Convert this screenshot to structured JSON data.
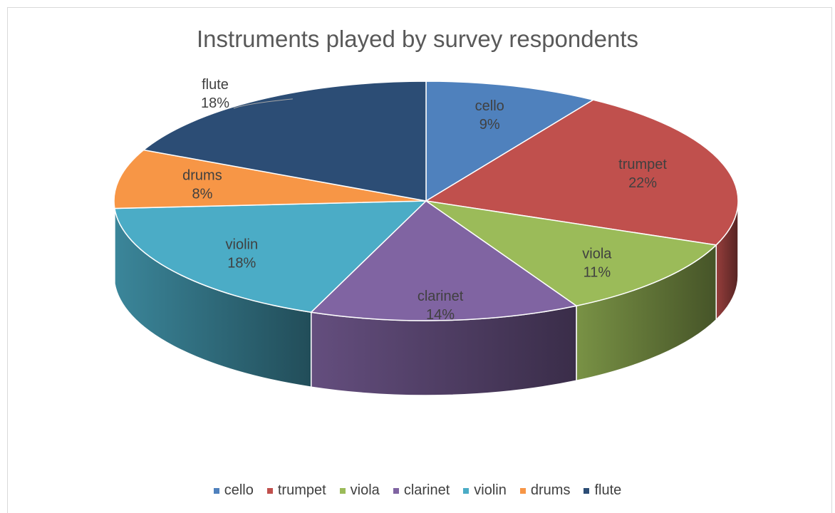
{
  "chart_data": {
    "type": "pie",
    "title": "Instruments played by survey respondents",
    "categories": [
      "cello",
      "trumpet",
      "viola",
      "clarinet",
      "violin",
      "drums",
      "flute"
    ],
    "values": [
      9,
      22,
      11,
      14,
      18,
      8,
      18
    ],
    "labels": [
      "9%",
      "22%",
      "11%",
      "14%",
      "18%",
      "8%",
      "18%"
    ],
    "colors": [
      "#4f81bd",
      "#c0504d",
      "#9bbb59",
      "#8064a2",
      "#4bacc6",
      "#f79646",
      "#2c4d75"
    ],
    "legend_position": "bottom",
    "style": "3d"
  }
}
